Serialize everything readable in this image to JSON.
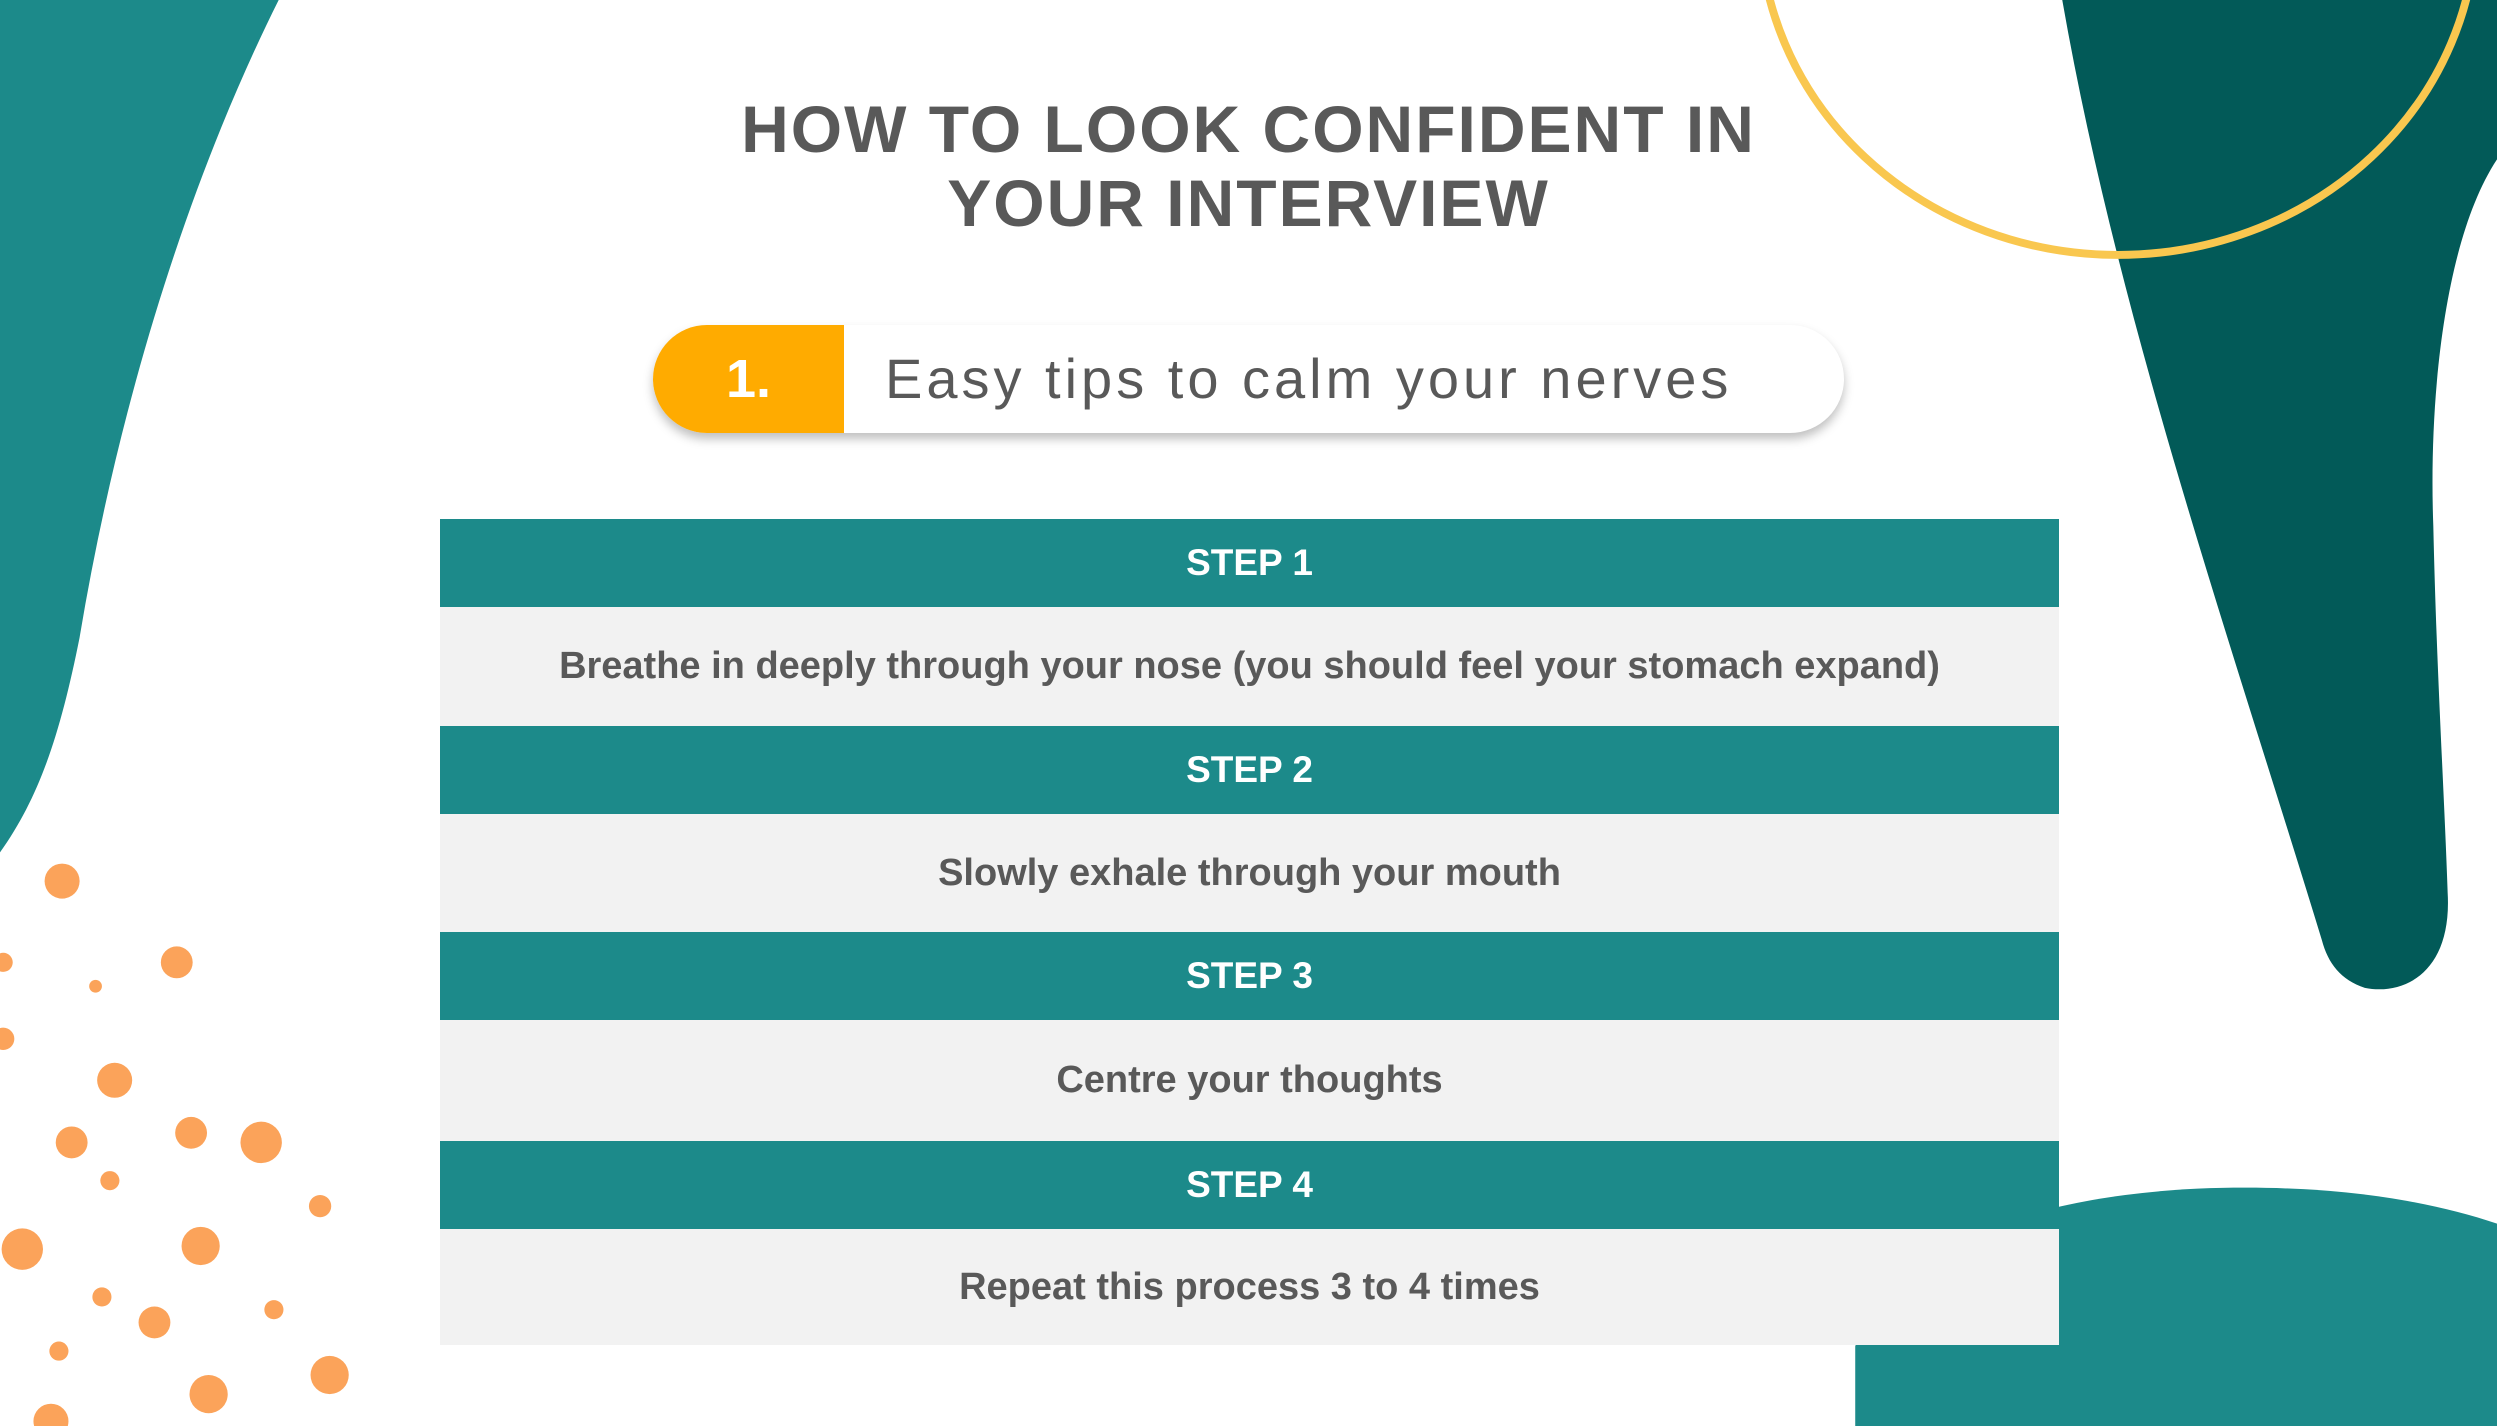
{
  "title": {
    "line1": "HOW TO LOOK CONFIDENT IN",
    "line2": "YOUR INTERVIEW"
  },
  "section": {
    "number": "1.",
    "heading": "Easy tips to calm your nerves"
  },
  "steps": [
    {
      "label": "STEP 1",
      "text": "Breathe in deeply through your nose (you should feel your stomach expand)"
    },
    {
      "label": "STEP 2",
      "text": "Slowly exhale through your mouth"
    },
    {
      "label": "STEP 3",
      "text": "Centre your thoughts"
    },
    {
      "label": "STEP 4",
      "text": "Repeat this process 3 to 4 times"
    }
  ],
  "colors": {
    "teal": "#1c8a8a",
    "dark_teal": "#025a58",
    "orange": "#ffab00",
    "dots": "#fba35a",
    "yellow": "#f9c74f",
    "text": "#595959"
  }
}
